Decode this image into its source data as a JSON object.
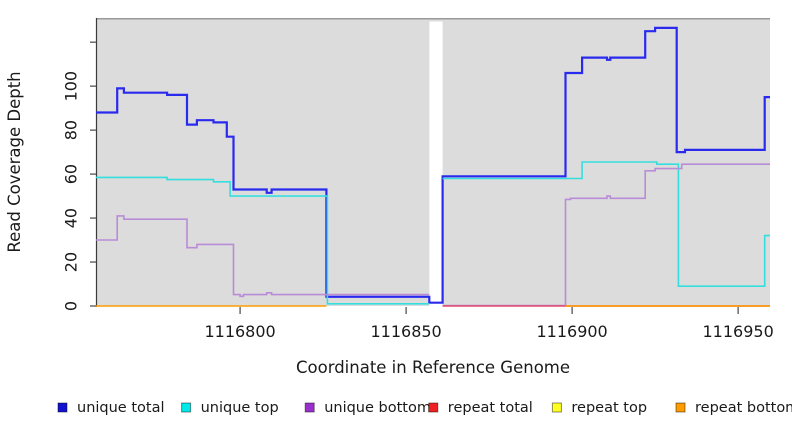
{
  "chart_data": {
    "type": "line",
    "subtype": "step-coverage",
    "title": "",
    "xlabel": "Coordinate in Reference Genome",
    "ylabel": "Read Coverage Depth",
    "xlim": [
      1116756.6,
      1116959.6
    ],
    "ylim": [
      0,
      131
    ],
    "x_ticks": [
      1116800,
      1116850,
      1116900,
      1116950
    ],
    "y_ticks": [
      0,
      20,
      40,
      60,
      80,
      100
    ],
    "y_ticks_unlabeled": [
      120
    ],
    "grid": false,
    "panel_bg": "#dcdcdc",
    "gap_region": {
      "from": 1116857,
      "to": 1116861
    },
    "legend_position": "bottom",
    "series": [
      {
        "name": "unique total",
        "color": "#2a2aee",
        "legend_color": "#1212d0",
        "line_width": 2.2,
        "segments": [
          [
            [
              1116756.6,
              88
            ],
            [
              1116763,
              99
            ],
            [
              1116765,
              97
            ],
            [
              1116778,
              96
            ],
            [
              1116784,
              82.5
            ],
            [
              1116787,
              84.5
            ],
            [
              1116792,
              83.5
            ],
            [
              1116796,
              77
            ],
            [
              1116798,
              53
            ],
            [
              1116808,
              51.5
            ],
            [
              1116809.5,
              53
            ],
            [
              1116826,
              4.2
            ],
            [
              1116857,
              1.5
            ],
            [
              1116861,
              59
            ],
            [
              1116898,
              106
            ],
            [
              1116903,
              113
            ],
            [
              1116910.5,
              112
            ],
            [
              1116911.5,
              113
            ],
            [
              1116922,
              125
            ],
            [
              1116925,
              126.5
            ],
            [
              1116931.5,
              70
            ],
            [
              1116934,
              71
            ],
            [
              1116958,
              95
            ],
            [
              1116959.6,
              95
            ]
          ]
        ]
      },
      {
        "name": "unique top",
        "color": "#35dede",
        "legend_color": "#00e8e8",
        "line_width": 1.6,
        "segments": [
          [
            [
              1116756.6,
              58.5
            ],
            [
              1116778,
              57.5
            ],
            [
              1116792,
              56.5
            ],
            [
              1116797,
              50
            ],
            [
              1116826.3,
              1
            ],
            [
              1116857,
              1
            ]
          ],
          [
            [
              1116861,
              58
            ],
            [
              1116903,
              65.5
            ],
            [
              1116925.5,
              64.5
            ],
            [
              1116932,
              9
            ],
            [
              1116958,
              32
            ],
            [
              1116959.6,
              32
            ]
          ]
        ]
      },
      {
        "name": "unique bottom",
        "color": "#b88cd6",
        "legend_color": "#9a30cc",
        "line_width": 1.6,
        "segments": [
          [
            [
              1116756.6,
              30
            ],
            [
              1116763,
              41
            ],
            [
              1116765,
              39.5
            ],
            [
              1116784,
              26.5
            ],
            [
              1116787,
              28
            ],
            [
              1116798,
              5.2
            ],
            [
              1116800,
              4.4
            ],
            [
              1116801,
              5.2
            ],
            [
              1116808,
              6
            ],
            [
              1116809.5,
              5.2
            ],
            [
              1116857,
              5.2
            ]
          ],
          [
            [
              1116861,
              0.2
            ],
            [
              1116898,
              48.5
            ],
            [
              1116899.5,
              49
            ],
            [
              1116910.5,
              50
            ],
            [
              1116911.5,
              49
            ],
            [
              1116922,
              61.5
            ],
            [
              1116925,
              62.5
            ],
            [
              1116933,
              64.5
            ],
            [
              1116959.6,
              64.5
            ]
          ]
        ]
      },
      {
        "name": "repeat total",
        "color": "#e04868",
        "legend_color": "#ee2222",
        "line_width": 1.6,
        "segments": [
          [
            [
              1116861,
              0
            ],
            [
              1116959.6,
              0
            ]
          ]
        ]
      },
      {
        "name": "repeat top",
        "color": "#ffff00",
        "legend_color": "#ffff22",
        "line_width": 1.6,
        "segments": []
      },
      {
        "name": "repeat bottom",
        "color": "#ff9d00",
        "legend_color": "#ff9d00",
        "line_width": 1.6,
        "segments": [
          [
            [
              1116756.6,
              0
            ],
            [
              1116826,
              0
            ]
          ],
          [
            [
              1116898,
              0
            ],
            [
              1116959.6,
              0
            ]
          ]
        ]
      }
    ]
  }
}
